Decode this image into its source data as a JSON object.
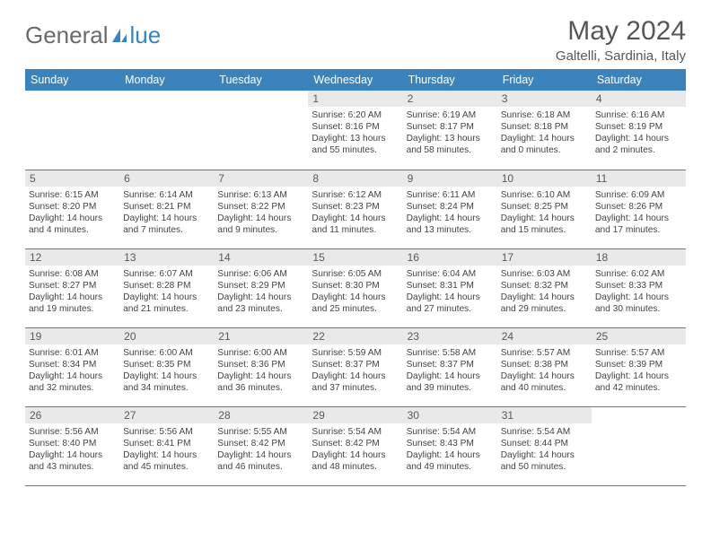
{
  "header": {
    "logo_text_a": "General",
    "logo_text_b": "lue",
    "month_title": "May 2024",
    "location": "Galtelli, Sardinia, Italy"
  },
  "colors": {
    "header_bg": "#3b83bd",
    "header_text": "#ffffff",
    "daynum_bg": "#e9e9e9",
    "text": "#444444"
  },
  "day_names": [
    "Sunday",
    "Monday",
    "Tuesday",
    "Wednesday",
    "Thursday",
    "Friday",
    "Saturday"
  ],
  "weeks": [
    [
      {
        "n": "",
        "s": "",
        "u": "",
        "d": ""
      },
      {
        "n": "",
        "s": "",
        "u": "",
        "d": ""
      },
      {
        "n": "",
        "s": "",
        "u": "",
        "d": ""
      },
      {
        "n": "1",
        "s": "Sunrise: 6:20 AM",
        "u": "Sunset: 8:16 PM",
        "d": "Daylight: 13 hours and 55 minutes."
      },
      {
        "n": "2",
        "s": "Sunrise: 6:19 AM",
        "u": "Sunset: 8:17 PM",
        "d": "Daylight: 13 hours and 58 minutes."
      },
      {
        "n": "3",
        "s": "Sunrise: 6:18 AM",
        "u": "Sunset: 8:18 PM",
        "d": "Daylight: 14 hours and 0 minutes."
      },
      {
        "n": "4",
        "s": "Sunrise: 6:16 AM",
        "u": "Sunset: 8:19 PM",
        "d": "Daylight: 14 hours and 2 minutes."
      }
    ],
    [
      {
        "n": "5",
        "s": "Sunrise: 6:15 AM",
        "u": "Sunset: 8:20 PM",
        "d": "Daylight: 14 hours and 4 minutes."
      },
      {
        "n": "6",
        "s": "Sunrise: 6:14 AM",
        "u": "Sunset: 8:21 PM",
        "d": "Daylight: 14 hours and 7 minutes."
      },
      {
        "n": "7",
        "s": "Sunrise: 6:13 AM",
        "u": "Sunset: 8:22 PM",
        "d": "Daylight: 14 hours and 9 minutes."
      },
      {
        "n": "8",
        "s": "Sunrise: 6:12 AM",
        "u": "Sunset: 8:23 PM",
        "d": "Daylight: 14 hours and 11 minutes."
      },
      {
        "n": "9",
        "s": "Sunrise: 6:11 AM",
        "u": "Sunset: 8:24 PM",
        "d": "Daylight: 14 hours and 13 minutes."
      },
      {
        "n": "10",
        "s": "Sunrise: 6:10 AM",
        "u": "Sunset: 8:25 PM",
        "d": "Daylight: 14 hours and 15 minutes."
      },
      {
        "n": "11",
        "s": "Sunrise: 6:09 AM",
        "u": "Sunset: 8:26 PM",
        "d": "Daylight: 14 hours and 17 minutes."
      }
    ],
    [
      {
        "n": "12",
        "s": "Sunrise: 6:08 AM",
        "u": "Sunset: 8:27 PM",
        "d": "Daylight: 14 hours and 19 minutes."
      },
      {
        "n": "13",
        "s": "Sunrise: 6:07 AM",
        "u": "Sunset: 8:28 PM",
        "d": "Daylight: 14 hours and 21 minutes."
      },
      {
        "n": "14",
        "s": "Sunrise: 6:06 AM",
        "u": "Sunset: 8:29 PM",
        "d": "Daylight: 14 hours and 23 minutes."
      },
      {
        "n": "15",
        "s": "Sunrise: 6:05 AM",
        "u": "Sunset: 8:30 PM",
        "d": "Daylight: 14 hours and 25 minutes."
      },
      {
        "n": "16",
        "s": "Sunrise: 6:04 AM",
        "u": "Sunset: 8:31 PM",
        "d": "Daylight: 14 hours and 27 minutes."
      },
      {
        "n": "17",
        "s": "Sunrise: 6:03 AM",
        "u": "Sunset: 8:32 PM",
        "d": "Daylight: 14 hours and 29 minutes."
      },
      {
        "n": "18",
        "s": "Sunrise: 6:02 AM",
        "u": "Sunset: 8:33 PM",
        "d": "Daylight: 14 hours and 30 minutes."
      }
    ],
    [
      {
        "n": "19",
        "s": "Sunrise: 6:01 AM",
        "u": "Sunset: 8:34 PM",
        "d": "Daylight: 14 hours and 32 minutes."
      },
      {
        "n": "20",
        "s": "Sunrise: 6:00 AM",
        "u": "Sunset: 8:35 PM",
        "d": "Daylight: 14 hours and 34 minutes."
      },
      {
        "n": "21",
        "s": "Sunrise: 6:00 AM",
        "u": "Sunset: 8:36 PM",
        "d": "Daylight: 14 hours and 36 minutes."
      },
      {
        "n": "22",
        "s": "Sunrise: 5:59 AM",
        "u": "Sunset: 8:37 PM",
        "d": "Daylight: 14 hours and 37 minutes."
      },
      {
        "n": "23",
        "s": "Sunrise: 5:58 AM",
        "u": "Sunset: 8:37 PM",
        "d": "Daylight: 14 hours and 39 minutes."
      },
      {
        "n": "24",
        "s": "Sunrise: 5:57 AM",
        "u": "Sunset: 8:38 PM",
        "d": "Daylight: 14 hours and 40 minutes."
      },
      {
        "n": "25",
        "s": "Sunrise: 5:57 AM",
        "u": "Sunset: 8:39 PM",
        "d": "Daylight: 14 hours and 42 minutes."
      }
    ],
    [
      {
        "n": "26",
        "s": "Sunrise: 5:56 AM",
        "u": "Sunset: 8:40 PM",
        "d": "Daylight: 14 hours and 43 minutes."
      },
      {
        "n": "27",
        "s": "Sunrise: 5:56 AM",
        "u": "Sunset: 8:41 PM",
        "d": "Daylight: 14 hours and 45 minutes."
      },
      {
        "n": "28",
        "s": "Sunrise: 5:55 AM",
        "u": "Sunset: 8:42 PM",
        "d": "Daylight: 14 hours and 46 minutes."
      },
      {
        "n": "29",
        "s": "Sunrise: 5:54 AM",
        "u": "Sunset: 8:42 PM",
        "d": "Daylight: 14 hours and 48 minutes."
      },
      {
        "n": "30",
        "s": "Sunrise: 5:54 AM",
        "u": "Sunset: 8:43 PM",
        "d": "Daylight: 14 hours and 49 minutes."
      },
      {
        "n": "31",
        "s": "Sunrise: 5:54 AM",
        "u": "Sunset: 8:44 PM",
        "d": "Daylight: 14 hours and 50 minutes."
      },
      {
        "n": "",
        "s": "",
        "u": "",
        "d": ""
      }
    ]
  ]
}
